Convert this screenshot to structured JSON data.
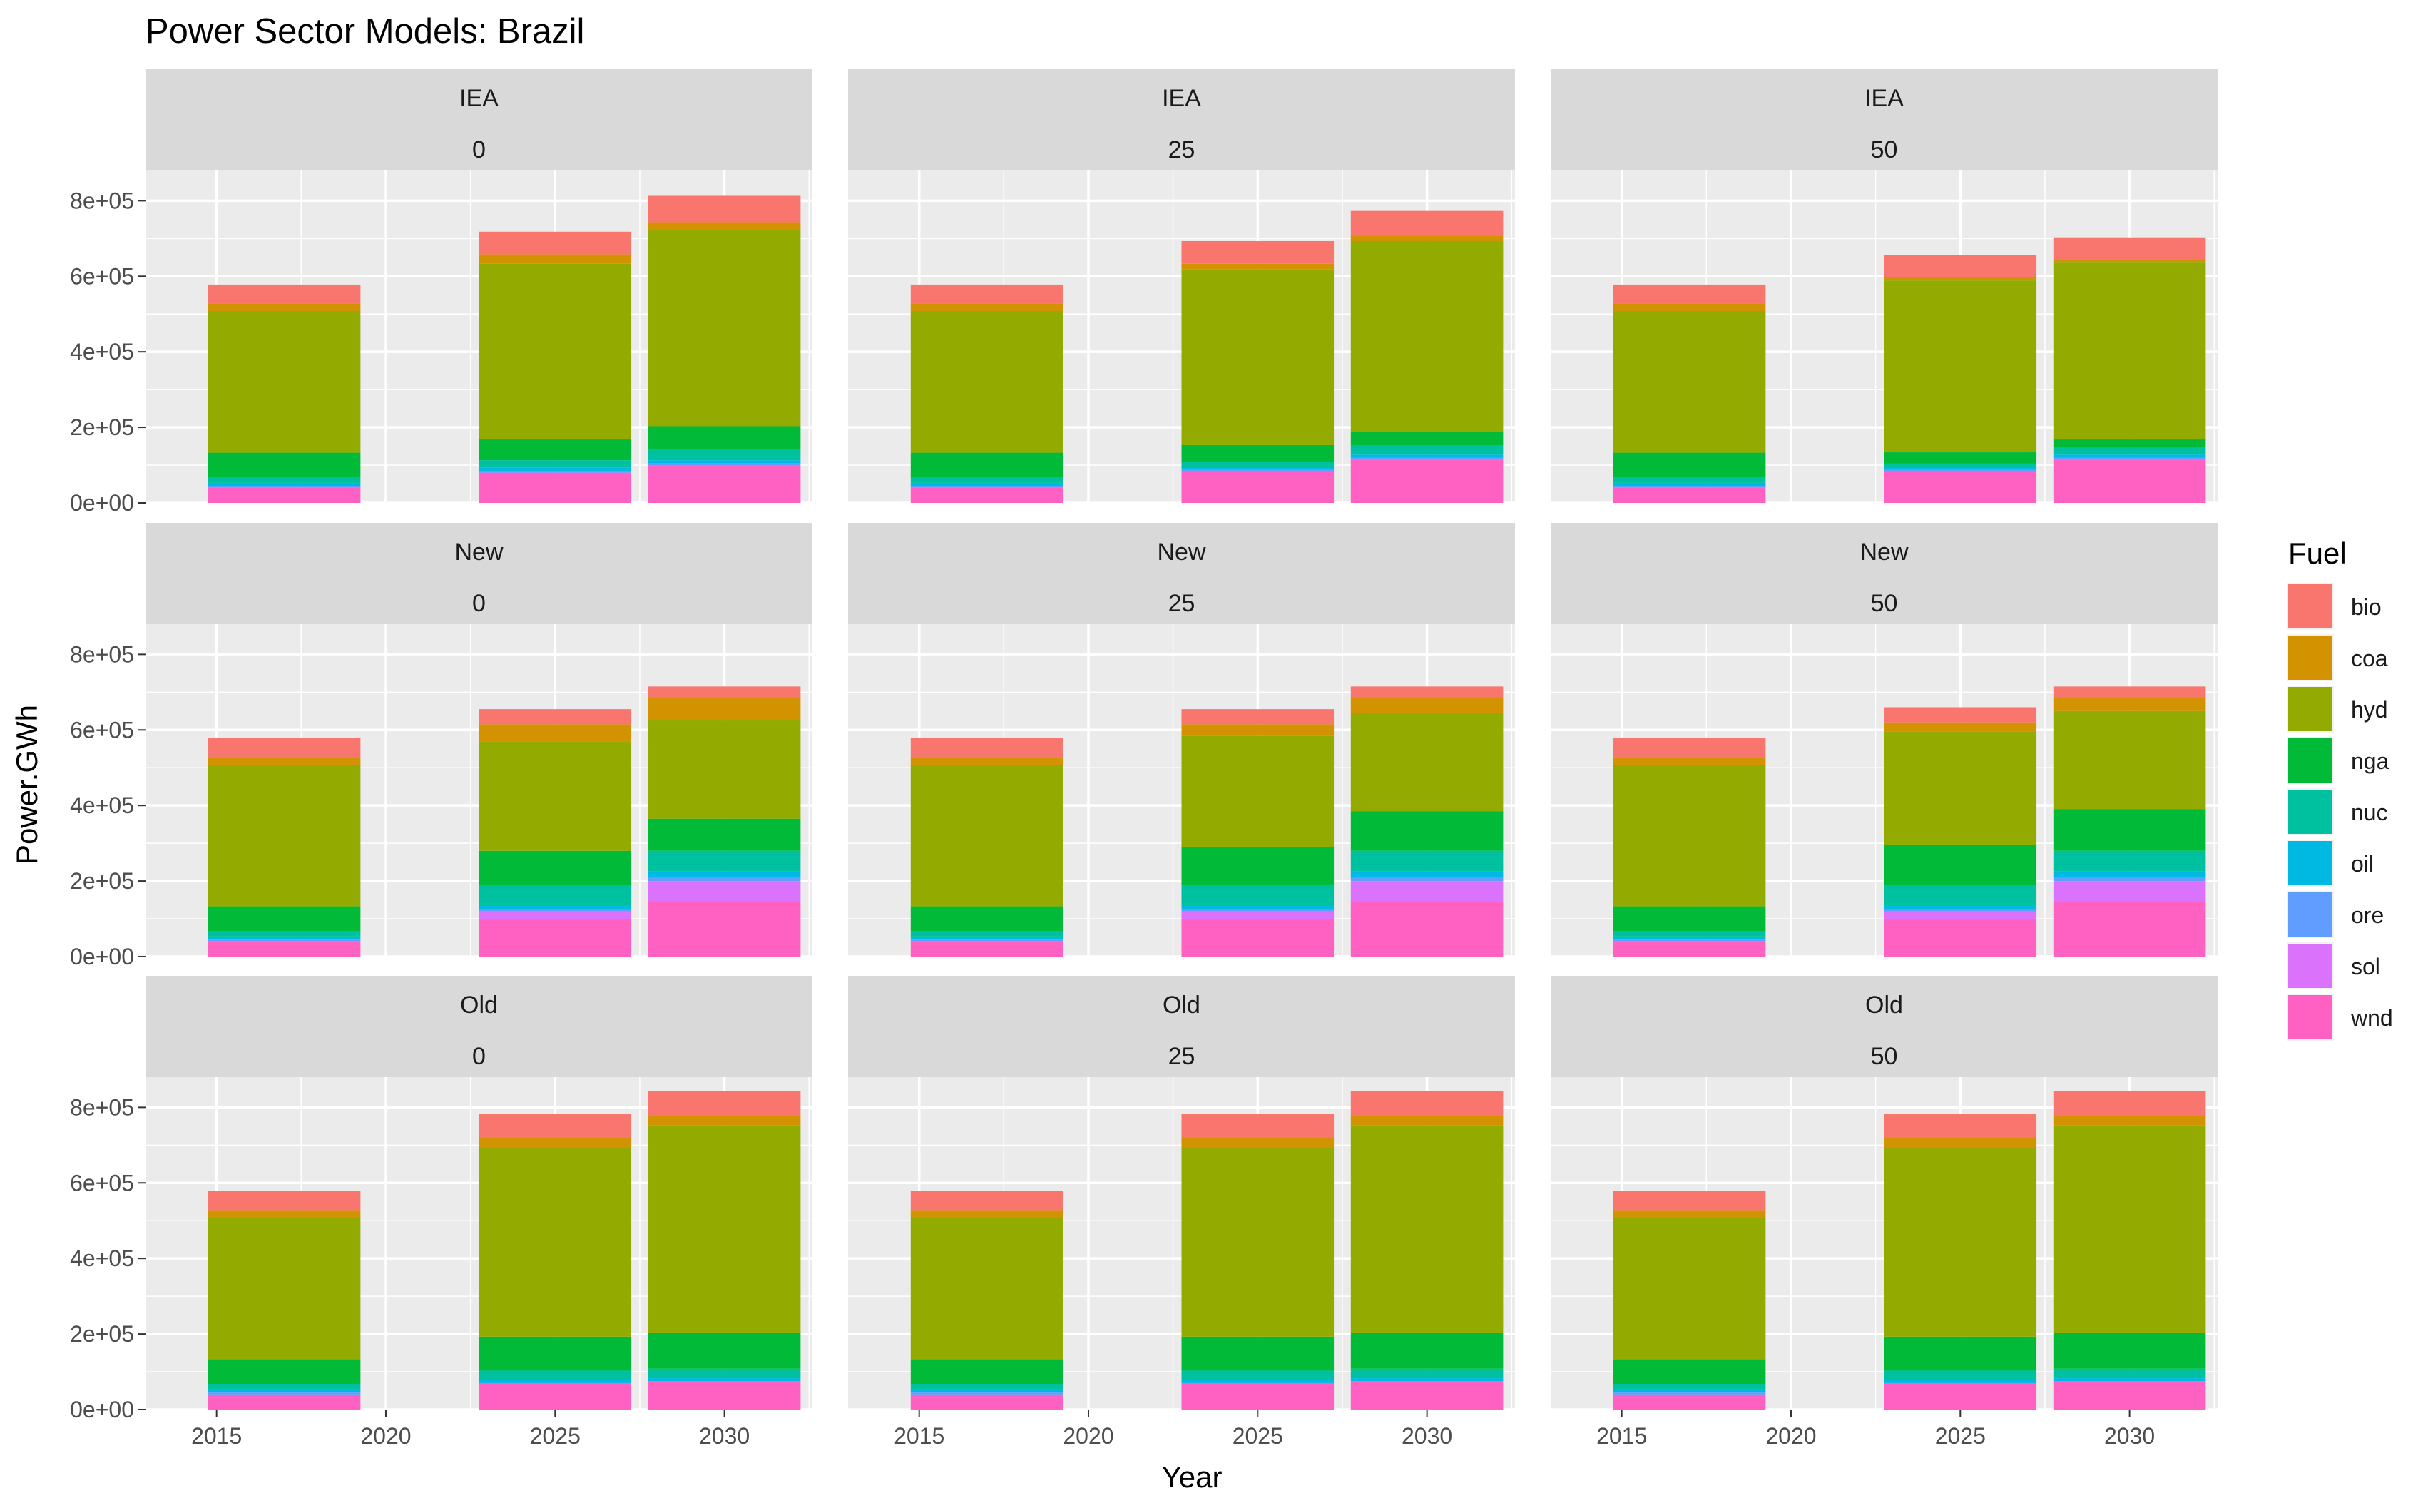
{
  "chart_data": {
    "type": "bar",
    "stacked": true,
    "title": "Power Sector Models: Brazil",
    "xlabel": "Year",
    "ylabel": "Power.GWh",
    "x_ticks": [
      "2015",
      "2020",
      "2025",
      "2030"
    ],
    "y_ticks": [
      "0e+00",
      "2e+05",
      "4e+05",
      "6e+05",
      "8e+05"
    ],
    "xlim": [
      2012.9,
      2032.6
    ],
    "ylim": [
      0,
      880000
    ],
    "grid": true,
    "facet_rows": [
      "IEA",
      "New",
      "Old"
    ],
    "facet_cols": [
      "0",
      "25",
      "50"
    ],
    "legend": {
      "title": "Fuel",
      "position": "right"
    },
    "fuels": [
      "bio",
      "coa",
      "hyd",
      "nga",
      "nuc",
      "oil",
      "ore",
      "sol",
      "wnd"
    ],
    "colors": {
      "bio": "#F8766D",
      "coa": "#D39200",
      "hyd": "#93AA00",
      "nga": "#00BA38",
      "nuc": "#00C19F",
      "oil": "#00B9E3",
      "ore": "#619CFF",
      "sol": "#DB72FB",
      "wnd": "#FF61C3"
    },
    "years": [
      2017,
      2025,
      2030
    ],
    "panels": [
      {
        "row": "IEA",
        "col": "0",
        "bars": [
          {
            "year": 2017,
            "values": {
              "bio": 50000,
              "coa": 20000,
              "hyd": 375000,
              "nga": 65000,
              "nuc": 15000,
              "oil": 8000,
              "ore": 5000,
              "sol": 0,
              "wnd": 40000
            }
          },
          {
            "year": 2025,
            "values": {
              "bio": 60000,
              "coa": 25000,
              "hyd": 465000,
              "nga": 55000,
              "nuc": 20000,
              "oil": 8000,
              "ore": 5000,
              "sol": 0,
              "wnd": 80000
            }
          },
          {
            "year": 2030,
            "values": {
              "bio": 70000,
              "coa": 20000,
              "hyd": 520000,
              "nga": 60000,
              "nuc": 30000,
              "oil": 8000,
              "ore": 5000,
              "sol": 0,
              "wnd": 100000
            }
          }
        ]
      },
      {
        "row": "IEA",
        "col": "25",
        "bars": [
          {
            "year": 2017,
            "values": {
              "bio": 50000,
              "coa": 20000,
              "hyd": 375000,
              "nga": 65000,
              "nuc": 15000,
              "oil": 8000,
              "ore": 5000,
              "sol": 0,
              "wnd": 40000
            }
          },
          {
            "year": 2025,
            "values": {
              "bio": 60000,
              "coa": 15000,
              "hyd": 465000,
              "nga": 45000,
              "nuc": 12000,
              "oil": 6000,
              "ore": 5000,
              "sol": 0,
              "wnd": 85000
            }
          },
          {
            "year": 2030,
            "values": {
              "bio": 65000,
              "coa": 15000,
              "hyd": 505000,
              "nga": 35000,
              "nuc": 25000,
              "oil": 8000,
              "ore": 5000,
              "sol": 0,
              "wnd": 115000
            }
          }
        ]
      },
      {
        "row": "IEA",
        "col": "50",
        "bars": [
          {
            "year": 2017,
            "values": {
              "bio": 50000,
              "coa": 20000,
              "hyd": 375000,
              "nga": 65000,
              "nuc": 15000,
              "oil": 8000,
              "ore": 5000,
              "sol": 0,
              "wnd": 40000
            }
          },
          {
            "year": 2025,
            "values": {
              "bio": 60000,
              "coa": 8000,
              "hyd": 455000,
              "nga": 30000,
              "nuc": 8000,
              "oil": 6000,
              "ore": 5000,
              "sol": 0,
              "wnd": 85000
            }
          },
          {
            "year": 2030,
            "values": {
              "bio": 60000,
              "coa": 5000,
              "hyd": 470000,
              "nga": 20000,
              "nuc": 20000,
              "oil": 8000,
              "ore": 5000,
              "sol": 0,
              "wnd": 115000
            }
          }
        ]
      },
      {
        "row": "New",
        "col": "0",
        "bars": [
          {
            "year": 2017,
            "values": {
              "bio": 50000,
              "coa": 20000,
              "hyd": 375000,
              "nga": 65000,
              "nuc": 15000,
              "oil": 8000,
              "ore": 5000,
              "sol": 0,
              "wnd": 40000
            }
          },
          {
            "year": 2025,
            "values": {
              "bio": 40000,
              "coa": 45000,
              "hyd": 290000,
              "nga": 90000,
              "nuc": 55000,
              "oil": 10000,
              "ore": 5000,
              "sol": 20000,
              "wnd": 100000
            }
          },
          {
            "year": 2030,
            "values": {
              "bio": 30000,
              "coa": 60000,
              "hyd": 260000,
              "nga": 85000,
              "nuc": 55000,
              "oil": 15000,
              "ore": 10000,
              "sol": 55000,
              "wnd": 145000
            }
          }
        ]
      },
      {
        "row": "New",
        "col": "25",
        "bars": [
          {
            "year": 2017,
            "values": {
              "bio": 50000,
              "coa": 20000,
              "hyd": 375000,
              "nga": 65000,
              "nuc": 15000,
              "oil": 8000,
              "ore": 5000,
              "sol": 0,
              "wnd": 40000
            }
          },
          {
            "year": 2025,
            "values": {
              "bio": 40000,
              "coa": 30000,
              "hyd": 295000,
              "nga": 100000,
              "nuc": 55000,
              "oil": 10000,
              "ore": 5000,
              "sol": 20000,
              "wnd": 100000
            }
          },
          {
            "year": 2030,
            "values": {
              "bio": 30000,
              "coa": 40000,
              "hyd": 260000,
              "nga": 105000,
              "nuc": 55000,
              "oil": 15000,
              "ore": 10000,
              "sol": 55000,
              "wnd": 145000
            }
          }
        ]
      },
      {
        "row": "New",
        "col": "50",
        "bars": [
          {
            "year": 2017,
            "values": {
              "bio": 50000,
              "coa": 20000,
              "hyd": 375000,
              "nga": 65000,
              "nuc": 15000,
              "oil": 8000,
              "ore": 5000,
              "sol": 0,
              "wnd": 40000
            }
          },
          {
            "year": 2025,
            "values": {
              "bio": 40000,
              "coa": 25000,
              "hyd": 300000,
              "nga": 105000,
              "nuc": 55000,
              "oil": 10000,
              "ore": 5000,
              "sol": 20000,
              "wnd": 100000
            }
          },
          {
            "year": 2030,
            "values": {
              "bio": 30000,
              "coa": 35000,
              "hyd": 260000,
              "nga": 110000,
              "nuc": 55000,
              "oil": 15000,
              "ore": 10000,
              "sol": 55000,
              "wnd": 145000
            }
          }
        ]
      },
      {
        "row": "Old",
        "col": "0",
        "bars": [
          {
            "year": 2017,
            "values": {
              "bio": 50000,
              "coa": 20000,
              "hyd": 375000,
              "nga": 65000,
              "nuc": 15000,
              "oil": 8000,
              "ore": 5000,
              "sol": 0,
              "wnd": 40000
            }
          },
          {
            "year": 2025,
            "values": {
              "bio": 65000,
              "coa": 25000,
              "hyd": 500000,
              "nga": 90000,
              "nuc": 25000,
              "oil": 8000,
              "ore": 0,
              "sol": 0,
              "wnd": 70000
            }
          },
          {
            "year": 2030,
            "values": {
              "bio": 65000,
              "coa": 25000,
              "hyd": 550000,
              "nga": 95000,
              "nuc": 25000,
              "oil": 8000,
              "ore": 0,
              "sol": 0,
              "wnd": 75000
            }
          }
        ]
      },
      {
        "row": "Old",
        "col": "25",
        "bars": [
          {
            "year": 2017,
            "values": {
              "bio": 50000,
              "coa": 20000,
              "hyd": 375000,
              "nga": 65000,
              "nuc": 15000,
              "oil": 8000,
              "ore": 5000,
              "sol": 0,
              "wnd": 40000
            }
          },
          {
            "year": 2025,
            "values": {
              "bio": 65000,
              "coa": 25000,
              "hyd": 500000,
              "nga": 90000,
              "nuc": 25000,
              "oil": 8000,
              "ore": 0,
              "sol": 0,
              "wnd": 70000
            }
          },
          {
            "year": 2030,
            "values": {
              "bio": 65000,
              "coa": 25000,
              "hyd": 550000,
              "nga": 95000,
              "nuc": 25000,
              "oil": 8000,
              "ore": 0,
              "sol": 0,
              "wnd": 75000
            }
          }
        ]
      },
      {
        "row": "Old",
        "col": "50",
        "bars": [
          {
            "year": 2017,
            "values": {
              "bio": 50000,
              "coa": 20000,
              "hyd": 375000,
              "nga": 65000,
              "nuc": 15000,
              "oil": 8000,
              "ore": 5000,
              "sol": 0,
              "wnd": 40000
            }
          },
          {
            "year": 2025,
            "values": {
              "bio": 65000,
              "coa": 25000,
              "hyd": 500000,
              "nga": 90000,
              "nuc": 25000,
              "oil": 8000,
              "ore": 0,
              "sol": 0,
              "wnd": 70000
            }
          },
          {
            "year": 2030,
            "values": {
              "bio": 65000,
              "coa": 25000,
              "hyd": 550000,
              "nga": 95000,
              "nuc": 25000,
              "oil": 8000,
              "ore": 0,
              "sol": 0,
              "wnd": 75000
            }
          }
        ]
      }
    ]
  }
}
